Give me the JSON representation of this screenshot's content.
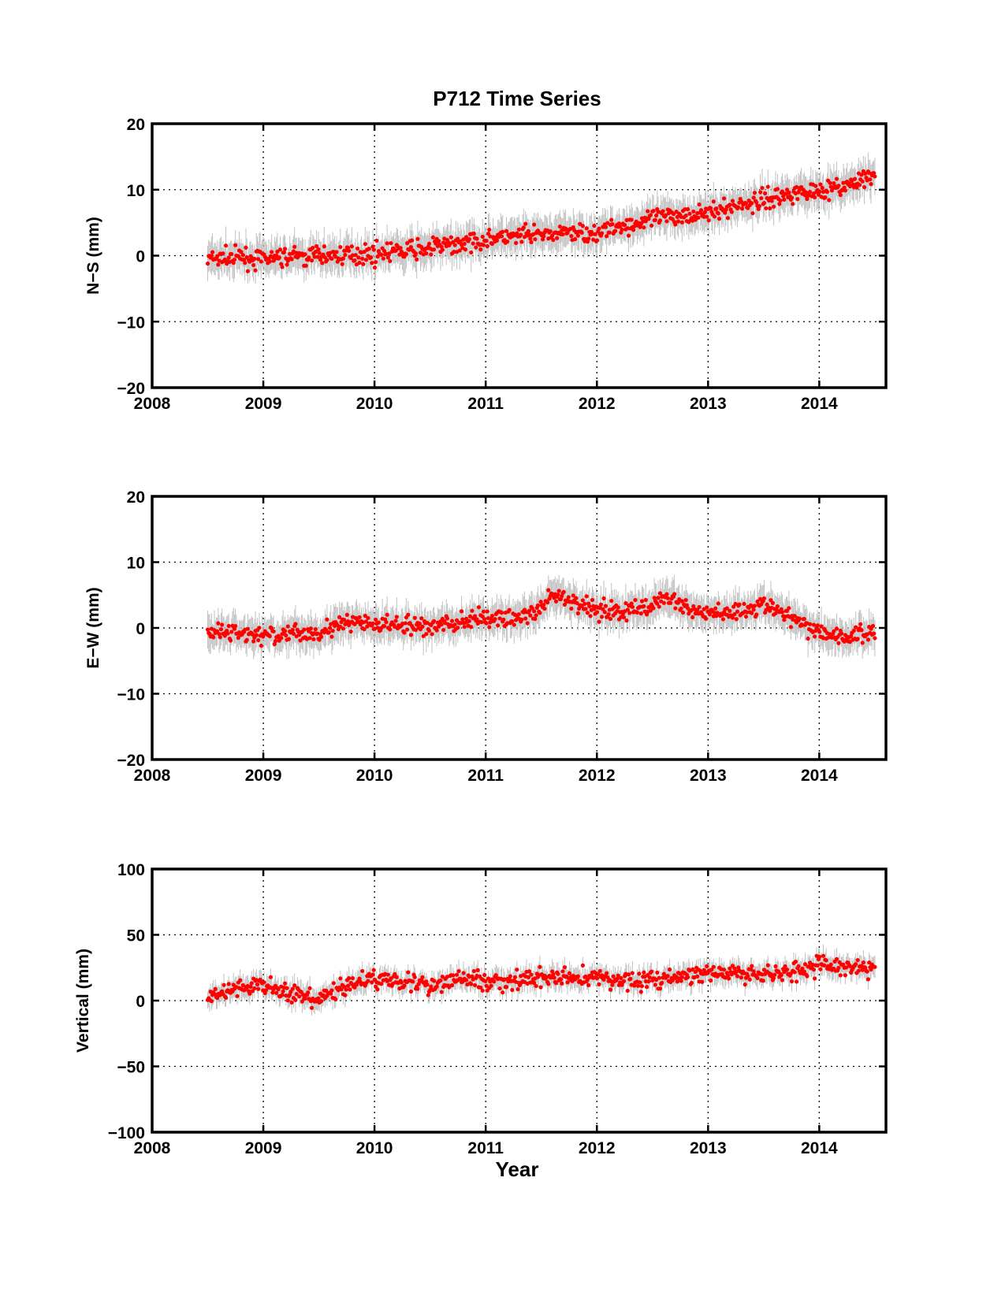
{
  "figure": {
    "title": "P712 Time Series",
    "xlabel": "Year",
    "colors": {
      "point": "#ff0000",
      "errorbar": "#c0c0c0",
      "axis": "#000000",
      "grid": "#000000"
    }
  },
  "chart_data": [
    {
      "type": "scatter",
      "title": "P712 Time Series",
      "xlabel": "",
      "ylabel": "N−S (mm)",
      "xlim": [
        2008,
        2014.6
      ],
      "ylim": [
        -20,
        20
      ],
      "xticks": [
        2008,
        2009,
        2010,
        2011,
        2012,
        2013,
        2014
      ],
      "xtick_labels": [
        "2008",
        "2009",
        "2010",
        "2011",
        "2012",
        "2013",
        "2014"
      ],
      "yticks": [
        -20,
        -10,
        0,
        10,
        20
      ],
      "ytick_labels": [
        "−20",
        "−10",
        "0",
        "10",
        "20"
      ],
      "grid": true,
      "series": [
        {
          "x": [
            2008.5,
            2008.75,
            2009.0,
            2009.25,
            2009.5,
            2009.75,
            2010.0,
            2010.25,
            2010.5,
            2010.75,
            2011.0,
            2011.25,
            2011.5,
            2011.75,
            2012.0,
            2012.25,
            2012.5,
            2012.75,
            2013.0,
            2013.25,
            2013.5,
            2013.75,
            2014.0,
            2014.25,
            2014.5
          ],
          "y": [
            -0.5,
            -0.3,
            -0.5,
            -0.2,
            0.0,
            0.2,
            0.3,
            0.7,
            1.2,
            1.8,
            2.5,
            2.8,
            3.2,
            3.5,
            3.5,
            4.5,
            5.5,
            6.2,
            6.5,
            7.5,
            8.5,
            9.5,
            10.0,
            10.5,
            12.0
          ],
          "error": 2.5
        }
      ]
    },
    {
      "type": "scatter",
      "xlabel": "",
      "ylabel": "E−W (mm)",
      "xlim": [
        2008,
        2014.6
      ],
      "ylim": [
        -20,
        20
      ],
      "xticks": [
        2008,
        2009,
        2010,
        2011,
        2012,
        2013,
        2014
      ],
      "xtick_labels": [
        "2008",
        "2009",
        "2010",
        "2011",
        "2012",
        "2013",
        "2014"
      ],
      "yticks": [
        -20,
        -10,
        0,
        10,
        20
      ],
      "ytick_labels": [
        "−20",
        "−10",
        "0",
        "10",
        "20"
      ],
      "grid": true,
      "series": [
        {
          "x": [
            2008.5,
            2008.75,
            2009.0,
            2009.25,
            2009.5,
            2009.75,
            2010.0,
            2010.25,
            2010.5,
            2010.75,
            2011.0,
            2011.25,
            2011.5,
            2011.6,
            2011.75,
            2012.0,
            2012.25,
            2012.5,
            2012.6,
            2012.75,
            2013.0,
            2013.25,
            2013.5,
            2013.75,
            2014.0,
            2014.25,
            2014.5
          ],
          "y": [
            -0.5,
            -0.8,
            -1.2,
            -1.0,
            -0.5,
            0.8,
            0.5,
            0.3,
            0.2,
            0.8,
            1.5,
            1.5,
            2.5,
            5.0,
            4.0,
            3.0,
            2.5,
            3.5,
            4.8,
            3.5,
            2.0,
            2.5,
            3.5,
            1.5,
            -0.5,
            -1.5,
            -0.5
          ],
          "error": 2.5
        }
      ]
    },
    {
      "type": "scatter",
      "xlabel": "Year",
      "ylabel": "Vertical (mm)",
      "xlim": [
        2008,
        2014.6
      ],
      "ylim": [
        -100,
        100
      ],
      "xticks": [
        2008,
        2009,
        2010,
        2011,
        2012,
        2013,
        2014
      ],
      "xtick_labels": [
        "2008",
        "2009",
        "2010",
        "2011",
        "2012",
        "2013",
        "2014"
      ],
      "yticks": [
        -100,
        -50,
        0,
        50,
        100
      ],
      "ytick_labels": [
        "−100",
        "−50",
        "0",
        "50",
        "100"
      ],
      "grid": true,
      "series": [
        {
          "x": [
            2008.5,
            2008.75,
            2009.0,
            2009.25,
            2009.5,
            2009.75,
            2010.0,
            2010.25,
            2010.5,
            2010.75,
            2011.0,
            2011.25,
            2011.5,
            2011.75,
            2012.0,
            2012.25,
            2012.5,
            2012.75,
            2013.0,
            2013.25,
            2013.5,
            2013.75,
            2014.0,
            2014.25,
            2014.5
          ],
          "y": [
            2,
            10,
            12,
            5,
            0,
            12,
            17,
            16,
            10,
            18,
            14,
            15,
            17,
            18,
            17,
            15,
            16,
            18,
            21,
            20,
            20,
            22,
            27,
            26,
            24
          ],
          "error": 8
        }
      ]
    }
  ]
}
